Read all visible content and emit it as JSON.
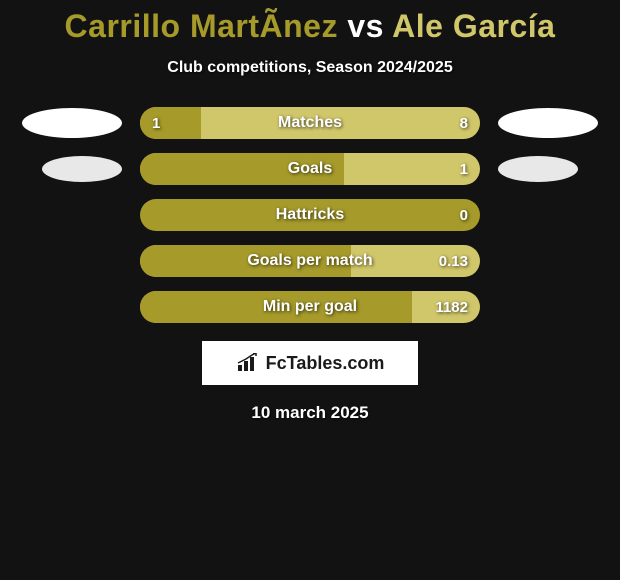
{
  "title_parts": {
    "p1": "Carrillo MartÃ­nez",
    "vs": " vs ",
    "p2": "Ale García"
  },
  "title_color_p1": "#a59a2a",
  "title_color_vs": "#ffffff",
  "title_color_p2": "#d0c66a",
  "subtitle": "Club competitions, Season 2024/2025",
  "date": "10 march 2025",
  "oval_main_color": "#ffffff",
  "oval_secondary_color": "#e8e8e8",
  "bar_track_bg": "#d0c66a",
  "bar_left_color": "#a59a2a",
  "logo_box_bg": "#ffffff",
  "logo_text_color": "#1a1a1a",
  "logo_text": "FcTables.com",
  "bars": [
    {
      "label": "Matches",
      "left_val": "1",
      "right_val": "8",
      "left_pct": 18,
      "show_left_oval": true,
      "show_right_oval": true,
      "left_oval_cls": "",
      "right_oval_cls": ""
    },
    {
      "label": "Goals",
      "left_val": "",
      "right_val": "1",
      "left_pct": 60,
      "show_left_oval": true,
      "show_right_oval": true,
      "left_oval_cls": "small",
      "right_oval_cls": "small"
    },
    {
      "label": "Hattricks",
      "left_val": "",
      "right_val": "0",
      "left_pct": 100,
      "show_left_oval": false,
      "show_right_oval": false,
      "left_oval_cls": "",
      "right_oval_cls": ""
    },
    {
      "label": "Goals per match",
      "left_val": "",
      "right_val": "0.13",
      "left_pct": 62,
      "show_left_oval": false,
      "show_right_oval": false,
      "left_oval_cls": "",
      "right_oval_cls": ""
    },
    {
      "label": "Min per goal",
      "left_val": "",
      "right_val": "1182",
      "left_pct": 80,
      "show_left_oval": false,
      "show_right_oval": false,
      "left_oval_cls": "",
      "right_oval_cls": ""
    }
  ]
}
